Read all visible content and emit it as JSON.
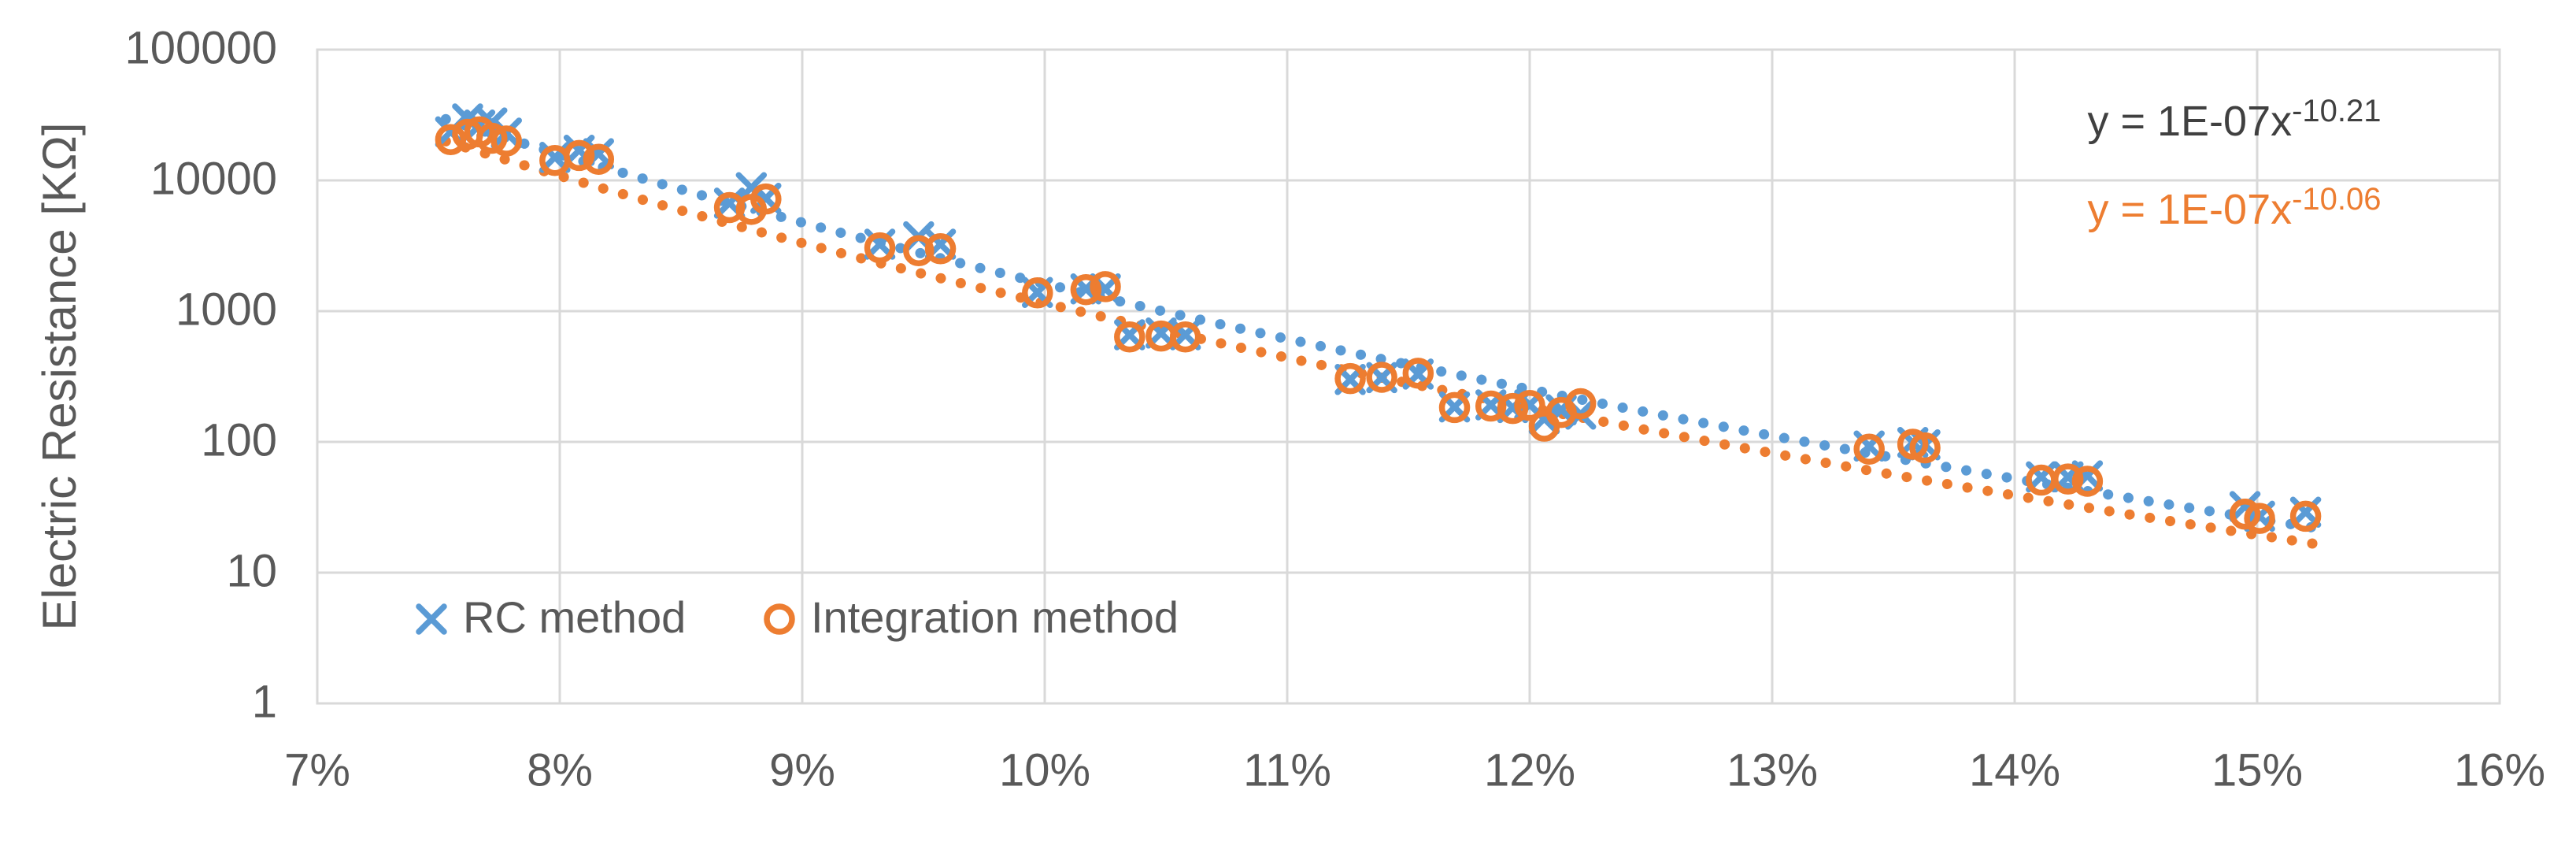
{
  "chart": {
    "y_axis_title": "Electric Resistance [KΩ]",
    "x_ticks": [
      "7%",
      "8%",
      "9%",
      "10%",
      "11%",
      "12%",
      "13%",
      "14%",
      "15%",
      "16%"
    ],
    "y_ticks": [
      "1",
      "10",
      "100",
      "1000",
      "10000",
      "100000"
    ],
    "colors": {
      "rc_blue": "#5B9BD5",
      "integration_orange": "#ED7D31",
      "equation_gray": "#404040",
      "axis_text": "#595959",
      "gridline": "#D9D9D9",
      "background": "#FFFFFF"
    },
    "equations": [
      {
        "base": "y = 1E-07x",
        "sup": "-10.21",
        "color": "#404040"
      },
      {
        "base": "y = 1E-07x",
        "sup": "-10.06",
        "color": "#ED7D31"
      }
    ],
    "legend": [
      {
        "label": "RC method",
        "marker": "x",
        "color": "#5B9BD5"
      },
      {
        "label": "Integration method",
        "marker": "circle",
        "color": "#ED7D31"
      }
    ]
  },
  "chart_data": {
    "type": "scatter",
    "title": "",
    "xlabel": "",
    "ylabel": "Electric Resistance [KΩ]",
    "x_axis": {
      "unit": "percent",
      "min": 7,
      "max": 16,
      "tick_step": 1
    },
    "y_axis": {
      "scale": "log10",
      "min": 1,
      "max": 100000,
      "ticks": [
        1,
        10,
        100,
        1000,
        10000,
        100000
      ]
    },
    "grid": true,
    "legend_position": "inside-bottom-left",
    "series": [
      {
        "name": "RC method",
        "marker": "x",
        "color": "#5B9BD5",
        "points": [
          [
            7.55,
            23500
          ],
          [
            7.62,
            29500
          ],
          [
            7.67,
            26500
          ],
          [
            7.72,
            27500
          ],
          [
            7.78,
            23000
          ],
          [
            7.98,
            15000
          ],
          [
            8.08,
            17000
          ],
          [
            8.16,
            16000
          ],
          [
            8.7,
            6700
          ],
          [
            8.79,
            8800
          ],
          [
            8.85,
            7300
          ],
          [
            9.32,
            3250
          ],
          [
            9.48,
            3700
          ],
          [
            9.57,
            3250
          ],
          [
            9.97,
            1390
          ],
          [
            10.17,
            1480
          ],
          [
            10.25,
            1480
          ],
          [
            10.35,
            660
          ],
          [
            10.48,
            680
          ],
          [
            10.58,
            660
          ],
          [
            11.26,
            300
          ],
          [
            11.39,
            310
          ],
          [
            11.54,
            330
          ],
          [
            11.69,
            185
          ],
          [
            11.84,
            192
          ],
          [
            11.93,
            183
          ],
          [
            12.0,
            192
          ],
          [
            12.06,
            150
          ],
          [
            12.13,
            176
          ],
          [
            12.21,
            163
          ],
          [
            13.4,
            93
          ],
          [
            13.58,
            99
          ],
          [
            13.63,
            95
          ],
          [
            14.11,
            54
          ],
          [
            14.22,
            54
          ],
          [
            14.3,
            55
          ],
          [
            14.95,
            32
          ],
          [
            15.01,
            27
          ],
          [
            15.2,
            29
          ]
        ]
      },
      {
        "name": "Integration method",
        "marker": "circle",
        "color": "#ED7D31",
        "points": [
          [
            7.55,
            20500
          ],
          [
            7.62,
            22500
          ],
          [
            7.67,
            23500
          ],
          [
            7.72,
            21000
          ],
          [
            7.78,
            20000
          ],
          [
            7.98,
            14200
          ],
          [
            8.08,
            15500
          ],
          [
            8.16,
            14500
          ],
          [
            8.7,
            6200
          ],
          [
            8.79,
            6000
          ],
          [
            8.85,
            7200
          ],
          [
            9.32,
            3050
          ],
          [
            9.48,
            2900
          ],
          [
            9.57,
            3000
          ],
          [
            9.97,
            1380
          ],
          [
            10.17,
            1460
          ],
          [
            10.25,
            1540
          ],
          [
            10.35,
            635
          ],
          [
            10.48,
            645
          ],
          [
            10.58,
            635
          ],
          [
            11.26,
            305
          ],
          [
            11.39,
            312
          ],
          [
            11.54,
            335
          ],
          [
            11.69,
            183
          ],
          [
            11.84,
            188
          ],
          [
            11.93,
            180
          ],
          [
            12.0,
            190
          ],
          [
            12.06,
            132
          ],
          [
            12.13,
            168
          ],
          [
            12.21,
            196
          ],
          [
            13.4,
            88
          ],
          [
            13.58,
            96
          ],
          [
            13.63,
            90
          ],
          [
            14.11,
            51
          ],
          [
            14.22,
            52
          ],
          [
            14.3,
            50
          ],
          [
            14.95,
            28
          ],
          [
            15.01,
            26
          ],
          [
            15.2,
            27
          ]
        ]
      }
    ],
    "trendlines": [
      {
        "series": "RC method",
        "equation": "y = 1E-07x^-10.21",
        "coefficient": 1e-07,
        "exponent": -10.21,
        "color": "#5B9BD5",
        "style": "dotted",
        "x_domain_percent": [
          7.53,
          15.27
        ]
      },
      {
        "series": "Integration method",
        "equation": "y = 1E-07x^-10.06",
        "coefficient": 1e-07,
        "exponent": -10.06,
        "color": "#ED7D31",
        "style": "dotted",
        "x_domain_percent": [
          7.53,
          15.27
        ]
      }
    ]
  }
}
